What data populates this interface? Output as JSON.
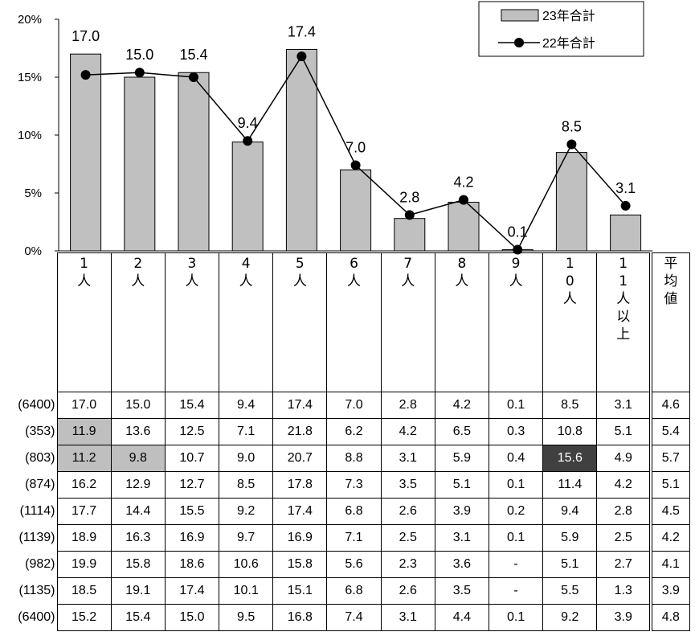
{
  "chart_data": {
    "type": "bar",
    "categories": [
      "1人",
      "2人",
      "3人",
      "4人",
      "5人",
      "6人",
      "7人",
      "8人",
      "9人",
      "10人",
      "11人以上"
    ],
    "ylim": [
      0,
      20
    ],
    "yticks": [
      "0%",
      "5%",
      "10%",
      "15%",
      "20%"
    ],
    "series": [
      {
        "name": "23年合計",
        "kind": "bar",
        "values": [
          17.0,
          15.0,
          15.4,
          9.4,
          17.4,
          7.0,
          2.8,
          4.2,
          0.1,
          8.5,
          3.1
        ],
        "labels": [
          "17.0",
          "15.0",
          "15.4",
          "9.4",
          "17.4",
          "7.0",
          "2.8",
          "4.2",
          "0.1",
          "8.5",
          "3.1"
        ],
        "color": "#c0c0c0"
      },
      {
        "name": "22年合計",
        "kind": "line",
        "values": [
          15.2,
          15.4,
          15.0,
          9.5,
          16.8,
          7.4,
          3.1,
          4.4,
          0.1,
          9.2,
          3.9
        ],
        "color": "#000000"
      }
    ],
    "legend_position": "top-right"
  },
  "table": {
    "header_cols": [
      "1\n人",
      "2\n人",
      "3\n人",
      "4\n人",
      "5\n人",
      "6\n人",
      "7\n人",
      "8\n人",
      "9\n人",
      "1\n0\n人",
      "1\n1\n人\n以\n上"
    ],
    "avg_header": "平\n均\n値",
    "rows": [
      {
        "n": "(6400)",
        "cells": [
          "17.0",
          "15.0",
          "15.4",
          "9.4",
          "17.4",
          "7.0",
          "2.8",
          "4.2",
          "0.1",
          "8.5",
          "3.1"
        ],
        "avg": "4.6",
        "hl": [],
        "dk": []
      },
      {
        "n": "(353)",
        "cells": [
          "11.9",
          "13.6",
          "12.5",
          "7.1",
          "21.8",
          "6.2",
          "4.2",
          "6.5",
          "0.3",
          "10.8",
          "5.1"
        ],
        "avg": "5.4",
        "hl": [
          0
        ],
        "dk": []
      },
      {
        "n": "(803)",
        "cells": [
          "11.2",
          "9.8",
          "10.7",
          "9.0",
          "20.7",
          "8.8",
          "3.1",
          "5.9",
          "0.4",
          "15.6",
          "4.9"
        ],
        "avg": "5.7",
        "hl": [
          0,
          1
        ],
        "dk": [
          9
        ]
      },
      {
        "n": "(874)",
        "cells": [
          "16.2",
          "12.9",
          "12.7",
          "8.5",
          "17.8",
          "7.3",
          "3.5",
          "5.1",
          "0.1",
          "11.4",
          "4.2"
        ],
        "avg": "5.1",
        "hl": [],
        "dk": []
      },
      {
        "n": "(1114)",
        "cells": [
          "17.7",
          "14.4",
          "15.5",
          "9.2",
          "17.4",
          "6.8",
          "2.6",
          "3.9",
          "0.2",
          "9.4",
          "2.8"
        ],
        "avg": "4.5",
        "hl": [],
        "dk": []
      },
      {
        "n": "(1139)",
        "cells": [
          "18.9",
          "16.3",
          "16.9",
          "9.7",
          "16.9",
          "7.1",
          "2.5",
          "3.1",
          "0.1",
          "5.9",
          "2.5"
        ],
        "avg": "4.2",
        "hl": [],
        "dk": []
      },
      {
        "n": "(982)",
        "cells": [
          "19.9",
          "15.8",
          "18.6",
          "10.6",
          "15.8",
          "5.6",
          "2.3",
          "3.6",
          "-",
          "5.1",
          "2.7"
        ],
        "avg": "4.1",
        "hl": [],
        "dk": []
      },
      {
        "n": "(1135)",
        "cells": [
          "18.5",
          "19.1",
          "17.4",
          "10.1",
          "15.1",
          "6.8",
          "2.6",
          "3.5",
          "-",
          "5.5",
          "1.3"
        ],
        "avg": "3.9",
        "hl": [],
        "dk": []
      },
      {
        "n": "(6400)",
        "cells": [
          "15.2",
          "15.4",
          "15.0",
          "9.5",
          "16.8",
          "7.4",
          "3.1",
          "4.4",
          "0.1",
          "9.2",
          "3.9"
        ],
        "avg": "4.8",
        "hl": [],
        "dk": []
      }
    ]
  }
}
